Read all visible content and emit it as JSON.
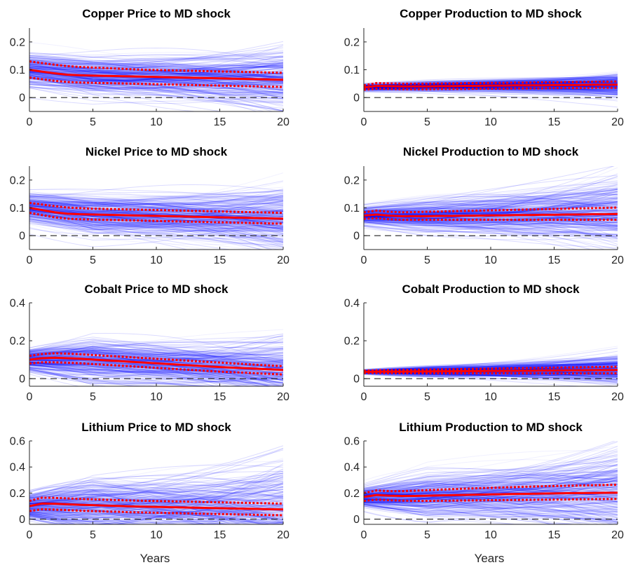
{
  "chart_data": [
    {
      "type": "line",
      "title": "Copper Price to MD shock",
      "xlabel": "",
      "ylabel": "",
      "xlim": [
        0,
        20
      ],
      "ylim": [
        -0.05,
        0.25
      ],
      "xticks": [
        "0",
        "5",
        "10",
        "15",
        "20"
      ],
      "yticks": [
        {
          "v": 0,
          "t": "0"
        },
        {
          "v": 0.1,
          "t": "0.1"
        },
        {
          "v": 0.2,
          "t": "0.2"
        }
      ],
      "x": [
        0,
        1,
        2,
        3,
        4,
        5,
        6,
        7,
        8,
        9,
        10,
        11,
        12,
        13,
        14,
        15,
        16,
        17,
        18,
        19,
        20
      ],
      "series": [
        {
          "values": [
            0.1,
            0.093,
            0.087,
            0.082,
            0.08,
            0.079,
            0.078,
            0.077,
            0.076,
            0.075,
            0.074,
            0.073,
            0.072,
            0.071,
            0.07,
            0.069,
            0.068,
            0.067,
            0.066,
            0.065,
            0.064
          ]
        },
        {
          "values": [
            0.13,
            0.124,
            0.118,
            0.113,
            0.11,
            0.108,
            0.106,
            0.104,
            0.102,
            0.1,
            0.099,
            0.098,
            0.097,
            0.096,
            0.095,
            0.094,
            0.093,
            0.092,
            0.091,
            0.09,
            0.089
          ]
        },
        {
          "values": [
            0.072,
            0.066,
            0.06,
            0.056,
            0.054,
            0.053,
            0.052,
            0.051,
            0.05,
            0.049,
            0.048,
            0.047,
            0.046,
            0.045,
            0.044,
            0.043,
            0.042,
            0.041,
            0.04,
            0.039,
            0.038
          ]
        }
      ],
      "zero_line": 0,
      "draws": {
        "center": [
          0.1,
          0.079,
          0.064
        ],
        "spread": [
          0.06,
          0.08,
          0.11
        ]
      }
    },
    {
      "type": "line",
      "title": "Copper Production to MD shock",
      "xlabel": "",
      "ylabel": "",
      "xlim": [
        0,
        20
      ],
      "ylim": [
        -0.05,
        0.25
      ],
      "xticks": [
        "0",
        "5",
        "10",
        "15",
        "20"
      ],
      "yticks": [
        {
          "v": 0,
          "t": "0"
        },
        {
          "v": 0.1,
          "t": "0.1"
        },
        {
          "v": 0.2,
          "t": "0.2"
        }
      ],
      "x": [
        0,
        1,
        2,
        3,
        4,
        5,
        6,
        7,
        8,
        9,
        10,
        11,
        12,
        13,
        14,
        15,
        16,
        17,
        18,
        19,
        20
      ],
      "series": [
        {
          "values": [
            0.036,
            0.042,
            0.041,
            0.04,
            0.04,
            0.04,
            0.041,
            0.041,
            0.042,
            0.042,
            0.043,
            0.043,
            0.044,
            0.044,
            0.044,
            0.045,
            0.045,
            0.045,
            0.046,
            0.046,
            0.046
          ]
        },
        {
          "values": [
            0.044,
            0.052,
            0.051,
            0.05,
            0.05,
            0.05,
            0.051,
            0.051,
            0.052,
            0.052,
            0.053,
            0.053,
            0.054,
            0.054,
            0.055,
            0.055,
            0.056,
            0.056,
            0.057,
            0.057,
            0.058
          ]
        },
        {
          "values": [
            0.028,
            0.032,
            0.031,
            0.03,
            0.03,
            0.03,
            0.031,
            0.031,
            0.031,
            0.032,
            0.032,
            0.032,
            0.033,
            0.033,
            0.033,
            0.034,
            0.034,
            0.034,
            0.035,
            0.035,
            0.035
          ]
        }
      ],
      "zero_line": 0,
      "draws": {
        "center": [
          0.036,
          0.04,
          0.046
        ],
        "spread": [
          0.012,
          0.02,
          0.04
        ]
      }
    },
    {
      "type": "line",
      "title": "Nickel Price to MD shock",
      "xlabel": "",
      "ylabel": "",
      "xlim": [
        0,
        20
      ],
      "ylim": [
        -0.05,
        0.25
      ],
      "xticks": [
        "0",
        "5",
        "10",
        "15",
        "20"
      ],
      "yticks": [
        {
          "v": 0,
          "t": "0"
        },
        {
          "v": 0.1,
          "t": "0.1"
        },
        {
          "v": 0.2,
          "t": "0.2"
        }
      ],
      "x": [
        0,
        1,
        2,
        3,
        4,
        5,
        6,
        7,
        8,
        9,
        10,
        11,
        12,
        13,
        14,
        15,
        16,
        17,
        18,
        19,
        20
      ],
      "series": [
        {
          "values": [
            0.1,
            0.092,
            0.084,
            0.079,
            0.077,
            0.076,
            0.075,
            0.074,
            0.073,
            0.072,
            0.071,
            0.07,
            0.069,
            0.068,
            0.067,
            0.066,
            0.065,
            0.064,
            0.063,
            0.062,
            0.061
          ]
        },
        {
          "values": [
            0.118,
            0.112,
            0.106,
            0.101,
            0.099,
            0.097,
            0.096,
            0.095,
            0.094,
            0.093,
            0.092,
            0.091,
            0.09,
            0.089,
            0.088,
            0.087,
            0.086,
            0.085,
            0.084,
            0.083,
            0.082
          ]
        },
        {
          "values": [
            0.082,
            0.074,
            0.066,
            0.061,
            0.059,
            0.058,
            0.057,
            0.056,
            0.055,
            0.054,
            0.053,
            0.052,
            0.051,
            0.05,
            0.049,
            0.048,
            0.047,
            0.046,
            0.045,
            0.044,
            0.043
          ]
        }
      ],
      "zero_line": 0,
      "draws": {
        "center": [
          0.1,
          0.076,
          0.061
        ],
        "spread": [
          0.05,
          0.08,
          0.12
        ]
      }
    },
    {
      "type": "line",
      "title": "Nickel Production to MD shock",
      "xlabel": "",
      "ylabel": "",
      "xlim": [
        0,
        20
      ],
      "ylim": [
        -0.05,
        0.25
      ],
      "xticks": [
        "0",
        "5",
        "10",
        "15",
        "20"
      ],
      "yticks": [
        {
          "v": 0,
          "t": "0"
        },
        {
          "v": 0.1,
          "t": "0.1"
        },
        {
          "v": 0.2,
          "t": "0.2"
        }
      ],
      "x": [
        0,
        1,
        2,
        3,
        4,
        5,
        6,
        7,
        8,
        9,
        10,
        11,
        12,
        13,
        14,
        15,
        16,
        17,
        18,
        19,
        20
      ],
      "series": [
        {
          "values": [
            0.072,
            0.076,
            0.072,
            0.07,
            0.07,
            0.07,
            0.071,
            0.071,
            0.072,
            0.072,
            0.073,
            0.073,
            0.074,
            0.074,
            0.075,
            0.075,
            0.076,
            0.076,
            0.077,
            0.077,
            0.078
          ]
        },
        {
          "values": [
            0.084,
            0.09,
            0.086,
            0.084,
            0.085,
            0.086,
            0.087,
            0.088,
            0.089,
            0.09,
            0.091,
            0.092,
            0.093,
            0.094,
            0.095,
            0.096,
            0.097,
            0.098,
            0.099,
            0.1,
            0.101
          ]
        },
        {
          "values": [
            0.061,
            0.063,
            0.059,
            0.057,
            0.057,
            0.057,
            0.057,
            0.057,
            0.057,
            0.057,
            0.057,
            0.057,
            0.057,
            0.057,
            0.057,
            0.057,
            0.057,
            0.057,
            0.057,
            0.057,
            0.057
          ]
        }
      ],
      "zero_line": 0,
      "draws": {
        "center": [
          0.072,
          0.07,
          0.078
        ],
        "spread": [
          0.03,
          0.06,
          0.12
        ]
      }
    },
    {
      "type": "line",
      "title": "Cobalt Price to MD shock",
      "xlabel": "",
      "ylabel": "",
      "xlim": [
        0,
        20
      ],
      "ylim": [
        -0.04,
        0.4
      ],
      "xticks": [
        "0",
        "5",
        "10",
        "15",
        "20"
      ],
      "yticks": [
        {
          "v": 0,
          "t": "0"
        },
        {
          "v": 0.2,
          "t": "0.2"
        },
        {
          "v": 0.4,
          "t": "0.4"
        }
      ],
      "x": [
        0,
        1,
        2,
        3,
        4,
        5,
        6,
        7,
        8,
        9,
        10,
        11,
        12,
        13,
        14,
        15,
        16,
        17,
        18,
        19,
        20
      ],
      "series": [
        {
          "values": [
            0.1,
            0.108,
            0.11,
            0.108,
            0.105,
            0.101,
            0.097,
            0.093,
            0.089,
            0.085,
            0.081,
            0.077,
            0.073,
            0.069,
            0.065,
            0.061,
            0.058,
            0.055,
            0.052,
            0.049,
            0.046
          ]
        },
        {
          "values": [
            0.12,
            0.13,
            0.134,
            0.132,
            0.129,
            0.125,
            0.121,
            0.117,
            0.113,
            0.109,
            0.105,
            0.101,
            0.097,
            0.093,
            0.089,
            0.085,
            0.081,
            0.077,
            0.073,
            0.069,
            0.066
          ]
        },
        {
          "values": [
            0.08,
            0.086,
            0.086,
            0.084,
            0.081,
            0.077,
            0.073,
            0.069,
            0.065,
            0.061,
            0.057,
            0.053,
            0.049,
            0.045,
            0.041,
            0.037,
            0.034,
            0.031,
            0.028,
            0.025,
            0.022
          ]
        }
      ],
      "zero_line": 0,
      "draws": {
        "center": [
          0.1,
          0.1,
          0.046
        ],
        "spread": [
          0.06,
          0.14,
          0.17
        ]
      }
    },
    {
      "type": "line",
      "title": "Cobalt Production to MD shock",
      "xlabel": "",
      "ylabel": "",
      "xlim": [
        0,
        20
      ],
      "ylim": [
        -0.04,
        0.4
      ],
      "xticks": [
        "0",
        "5",
        "10",
        "15",
        "20"
      ],
      "yticks": [
        {
          "v": 0,
          "t": "0"
        },
        {
          "v": 0.2,
          "t": "0.2"
        },
        {
          "v": 0.4,
          "t": "0.4"
        }
      ],
      "x": [
        0,
        1,
        2,
        3,
        4,
        5,
        6,
        7,
        8,
        9,
        10,
        11,
        12,
        13,
        14,
        15,
        16,
        17,
        18,
        19,
        20
      ],
      "series": [
        {
          "values": [
            0.036,
            0.037,
            0.037,
            0.037,
            0.038,
            0.038,
            0.039,
            0.039,
            0.04,
            0.04,
            0.041,
            0.041,
            0.042,
            0.042,
            0.043,
            0.043,
            0.044,
            0.044,
            0.045,
            0.045,
            0.046
          ]
        },
        {
          "values": [
            0.042,
            0.044,
            0.045,
            0.046,
            0.047,
            0.048,
            0.049,
            0.05,
            0.051,
            0.052,
            0.053,
            0.054,
            0.055,
            0.056,
            0.057,
            0.058,
            0.059,
            0.06,
            0.061,
            0.062,
            0.063
          ]
        },
        {
          "values": [
            0.03,
            0.03,
            0.029,
            0.029,
            0.029,
            0.028,
            0.028,
            0.028,
            0.028,
            0.028,
            0.028,
            0.028,
            0.028,
            0.028,
            0.028,
            0.028,
            0.028,
            0.028,
            0.028,
            0.028,
            0.028
          ]
        }
      ],
      "zero_line": 0,
      "draws": {
        "center": [
          0.036,
          0.038,
          0.046
        ],
        "spread": [
          0.01,
          0.03,
          0.07
        ]
      }
    },
    {
      "type": "line",
      "title": "Lithium Price to MD shock",
      "xlabel": "Years",
      "ylabel": "",
      "xlim": [
        0,
        20
      ],
      "ylim": [
        -0.04,
        0.6
      ],
      "xticks": [
        "0",
        "5",
        "10",
        "15",
        "20"
      ],
      "yticks": [
        {
          "v": 0,
          "t": "0"
        },
        {
          "v": 0.2,
          "t": "0.2"
        },
        {
          "v": 0.4,
          "t": "0.4"
        },
        {
          "v": 0.6,
          "t": "0.6"
        }
      ],
      "x": [
        0,
        1,
        2,
        3,
        4,
        5,
        6,
        7,
        8,
        9,
        10,
        11,
        12,
        13,
        14,
        15,
        16,
        17,
        18,
        19,
        20
      ],
      "series": [
        {
          "values": [
            0.1,
            0.12,
            0.118,
            0.114,
            0.11,
            0.107,
            0.104,
            0.101,
            0.098,
            0.096,
            0.094,
            0.092,
            0.09,
            0.088,
            0.086,
            0.084,
            0.082,
            0.08,
            0.078,
            0.076,
            0.074
          ]
        },
        {
          "values": [
            0.14,
            0.165,
            0.163,
            0.159,
            0.155,
            0.152,
            0.149,
            0.146,
            0.143,
            0.141,
            0.139,
            0.137,
            0.135,
            0.133,
            0.131,
            0.129,
            0.127,
            0.125,
            0.123,
            0.121,
            0.119
          ]
        },
        {
          "values": [
            0.062,
            0.076,
            0.073,
            0.069,
            0.065,
            0.062,
            0.059,
            0.056,
            0.053,
            0.051,
            0.049,
            0.047,
            0.045,
            0.043,
            0.041,
            0.039,
            0.037,
            0.035,
            0.033,
            0.031,
            0.03
          ]
        }
      ],
      "zero_line": 0,
      "draws": {
        "center": [
          0.1,
          0.107,
          0.074
        ],
        "spread": [
          0.1,
          0.25,
          0.38
        ]
      }
    },
    {
      "type": "line",
      "title": "Lithium Production to MD shock",
      "xlabel": "Years",
      "ylabel": "",
      "xlim": [
        0,
        20
      ],
      "ylim": [
        -0.04,
        0.6
      ],
      "xticks": [
        "0",
        "5",
        "10",
        "15",
        "20"
      ],
      "yticks": [
        {
          "v": 0,
          "t": "0"
        },
        {
          "v": 0.2,
          "t": "0.2"
        },
        {
          "v": 0.4,
          "t": "0.4"
        },
        {
          "v": 0.6,
          "t": "0.6"
        }
      ],
      "x": [
        0,
        1,
        2,
        3,
        4,
        5,
        6,
        7,
        8,
        9,
        10,
        11,
        12,
        13,
        14,
        15,
        16,
        17,
        18,
        19,
        20
      ],
      "series": [
        {
          "values": [
            0.17,
            0.185,
            0.18,
            0.178,
            0.178,
            0.18,
            0.182,
            0.184,
            0.186,
            0.188,
            0.19,
            0.191,
            0.193,
            0.194,
            0.196,
            0.197,
            0.199,
            0.2,
            0.201,
            0.202,
            0.203
          ]
        },
        {
          "values": [
            0.2,
            0.22,
            0.215,
            0.215,
            0.218,
            0.222,
            0.226,
            0.23,
            0.234,
            0.237,
            0.24,
            0.243,
            0.246,
            0.249,
            0.252,
            0.254,
            0.256,
            0.258,
            0.26,
            0.262,
            0.264
          ]
        },
        {
          "values": [
            0.14,
            0.15,
            0.145,
            0.142,
            0.14,
            0.14,
            0.141,
            0.142,
            0.143,
            0.144,
            0.145,
            0.146,
            0.147,
            0.148,
            0.149,
            0.15,
            0.151,
            0.152,
            0.153,
            0.154,
            0.155
          ]
        }
      ],
      "zero_line": 0,
      "draws": {
        "center": [
          0.17,
          0.18,
          0.203
        ],
        "spread": [
          0.08,
          0.2,
          0.3
        ]
      }
    }
  ],
  "colors": {
    "median": "#ff0000",
    "band": "#ff0000",
    "draws": "#0000ff",
    "zero_line": "#222222",
    "axis": "#262626"
  }
}
